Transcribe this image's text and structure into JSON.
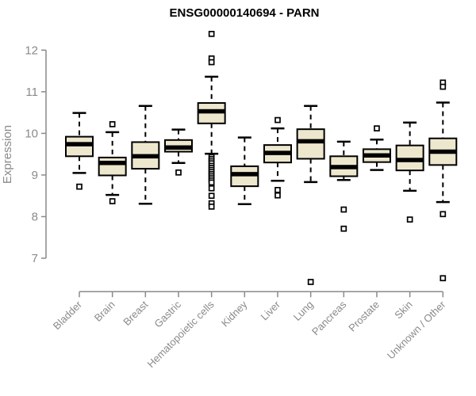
{
  "chart_data": {
    "type": "boxplot",
    "title": "ENSG00000140694 - PARN",
    "ylabel": "Expression",
    "xlabel": "",
    "ylim": [
      7,
      12
    ],
    "yticks": [
      7,
      8,
      9,
      10,
      11,
      12
    ],
    "grid": false,
    "legend": false,
    "categories": [
      "Bladder",
      "Brain",
      "Breast",
      "Gastric",
      "Hematopoietic cells",
      "Kidney",
      "Liver",
      "Lung",
      "Pancreas",
      "Prostate",
      "Skin",
      "Unknown / Other"
    ],
    "boxes": [
      {
        "name": "Bladder",
        "whisker_low": 9.05,
        "q1": 9.45,
        "median": 9.74,
        "q3": 9.92,
        "whisker_high": 10.49,
        "outliers": [
          8.72
        ]
      },
      {
        "name": "Brain",
        "whisker_low": 8.52,
        "q1": 8.99,
        "median": 9.29,
        "q3": 9.42,
        "whisker_high": 10.03,
        "outliers": [
          10.22,
          8.37
        ]
      },
      {
        "name": "Breast",
        "whisker_low": 8.31,
        "q1": 9.15,
        "median": 9.45,
        "q3": 9.79,
        "whisker_high": 10.66,
        "outliers": []
      },
      {
        "name": "Gastric",
        "whisker_low": 9.29,
        "q1": 9.56,
        "median": 9.66,
        "q3": 9.84,
        "whisker_high": 10.09,
        "outliers": [
          9.06
        ]
      },
      {
        "name": "Hematopoietic cells",
        "whisker_low": 9.51,
        "q1": 10.24,
        "median": 10.53,
        "q3": 10.73,
        "whisker_high": 11.36,
        "outliers": [
          12.39,
          11.8,
          11.71,
          9.43,
          9.38,
          9.33,
          9.28,
          9.22,
          9.17,
          9.12,
          9.07,
          9.02,
          8.97,
          8.92,
          8.87,
          8.82,
          8.68,
          8.5,
          8.32,
          8.24
        ]
      },
      {
        "name": "Kidney",
        "whisker_low": 8.3,
        "q1": 8.73,
        "median": 9.02,
        "q3": 9.21,
        "whisker_high": 9.9,
        "outliers": []
      },
      {
        "name": "Liver",
        "whisker_low": 8.86,
        "q1": 9.3,
        "median": 9.53,
        "q3": 9.72,
        "whisker_high": 10.12,
        "outliers": [
          10.32,
          8.64,
          8.51
        ]
      },
      {
        "name": "Lung",
        "whisker_low": 8.83,
        "q1": 9.39,
        "median": 9.81,
        "q3": 10.1,
        "whisker_high": 10.66,
        "outliers": [
          6.43
        ]
      },
      {
        "name": "Pancreas",
        "whisker_low": 8.88,
        "q1": 8.97,
        "median": 9.19,
        "q3": 9.45,
        "whisker_high": 9.8,
        "outliers": [
          8.17,
          7.71
        ]
      },
      {
        "name": "Prostate",
        "whisker_low": 9.12,
        "q1": 9.31,
        "median": 9.47,
        "q3": 9.62,
        "whisker_high": 9.85,
        "outliers": [
          10.12
        ]
      },
      {
        "name": "Skin",
        "whisker_low": 8.62,
        "q1": 9.11,
        "median": 9.36,
        "q3": 9.71,
        "whisker_high": 10.26,
        "outliers": [
          7.93
        ]
      },
      {
        "name": "Unknown / Other",
        "whisker_low": 8.35,
        "q1": 9.24,
        "median": 9.56,
        "q3": 9.88,
        "whisker_high": 10.74,
        "outliers": [
          11.22,
          11.12,
          8.06,
          6.52
        ]
      }
    ]
  },
  "colors": {
    "box_fill": "#ede7ce",
    "box_border": "#000000",
    "median": "#000000",
    "whisker": "#000000",
    "outlier_stroke": "#000000",
    "outlier_fill": "#ffffff",
    "axis": "#8a8a8a",
    "title": "#000000",
    "background": "#ffffff"
  }
}
